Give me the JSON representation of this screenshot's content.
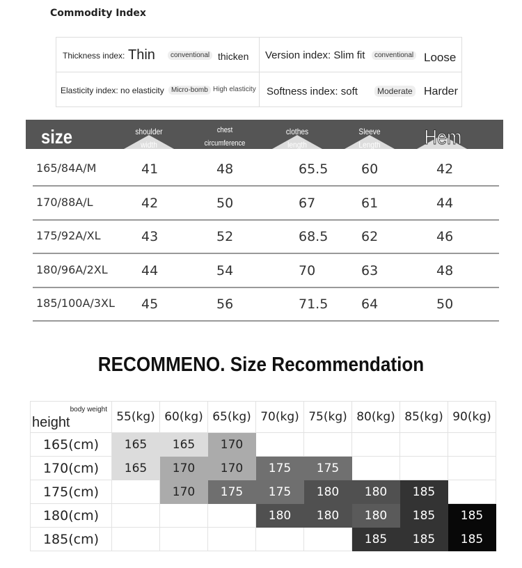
{
  "title": "Commodity Index",
  "index": {
    "thickness": {
      "label": "Thickness index:",
      "options": [
        "Thin",
        "conventional",
        "thicken"
      ]
    },
    "version": {
      "label": "Version index: Slim fit",
      "options": [
        "conventional",
        "Loose"
      ]
    },
    "elasticity": {
      "label": "Elasticity index: no elasticity",
      "options": [
        "Micro-bomb",
        "High elasticity"
      ]
    },
    "softness": {
      "label": "Softness index: soft",
      "options": [
        "Moderate",
        "Harder"
      ]
    }
  },
  "size_table": {
    "headers": {
      "size": "size",
      "shoulder1": "shoulder",
      "shoulder2": "width",
      "chest1": "chest",
      "chest2": "circumference",
      "clothes1": "clothes",
      "clothes2": "length",
      "sleeve1": "Sleeve",
      "sleeve2": "Length",
      "hem": "Hem"
    },
    "rows": [
      [
        "165/84A/M",
        "41",
        "48",
        "65.5",
        "60",
        "42"
      ],
      [
        "170/88A/L",
        "42",
        "50",
        "67",
        "61",
        "44"
      ],
      [
        "175/92A/XL",
        "43",
        "52",
        "68.5",
        "62",
        "46"
      ],
      [
        "180/96A/2XL",
        "44",
        "54",
        "70",
        "63",
        "48"
      ],
      [
        "185/100A/3XL",
        "45",
        "56",
        "71.5",
        "64",
        "50"
      ]
    ]
  },
  "recommendation": {
    "title": "RECOMMENO. Size Recommendation",
    "corner_weight": "body weight",
    "corner_height": "height",
    "weights": [
      "55(kg)",
      "60(kg)",
      "65(kg)",
      "70(kg)",
      "75(kg)",
      "80(kg)",
      "85(kg)",
      "90(kg)"
    ],
    "heights": [
      "165(cm)",
      "170(cm)",
      "175(cm)",
      "180(cm)",
      "185(cm)"
    ],
    "cells": [
      [
        "165",
        "165",
        "170",
        "",
        "",
        "",
        "",
        ""
      ],
      [
        "165",
        "170",
        "170",
        "175",
        "175",
        "",
        "",
        ""
      ],
      [
        "",
        "170",
        "175",
        "175",
        "180",
        "180",
        "185",
        ""
      ],
      [
        "",
        "",
        "",
        "180",
        "180",
        "180",
        "185",
        "185"
      ],
      [
        "",
        "",
        "",
        "",
        "",
        "185",
        "185",
        "185"
      ]
    ],
    "shades": {
      "165": "#dcdcdc",
      "170": "#ababab",
      "175": "#6f6f6f",
      "180": "#505050",
      "185": "#333333",
      "185-dark": "#080808"
    }
  }
}
